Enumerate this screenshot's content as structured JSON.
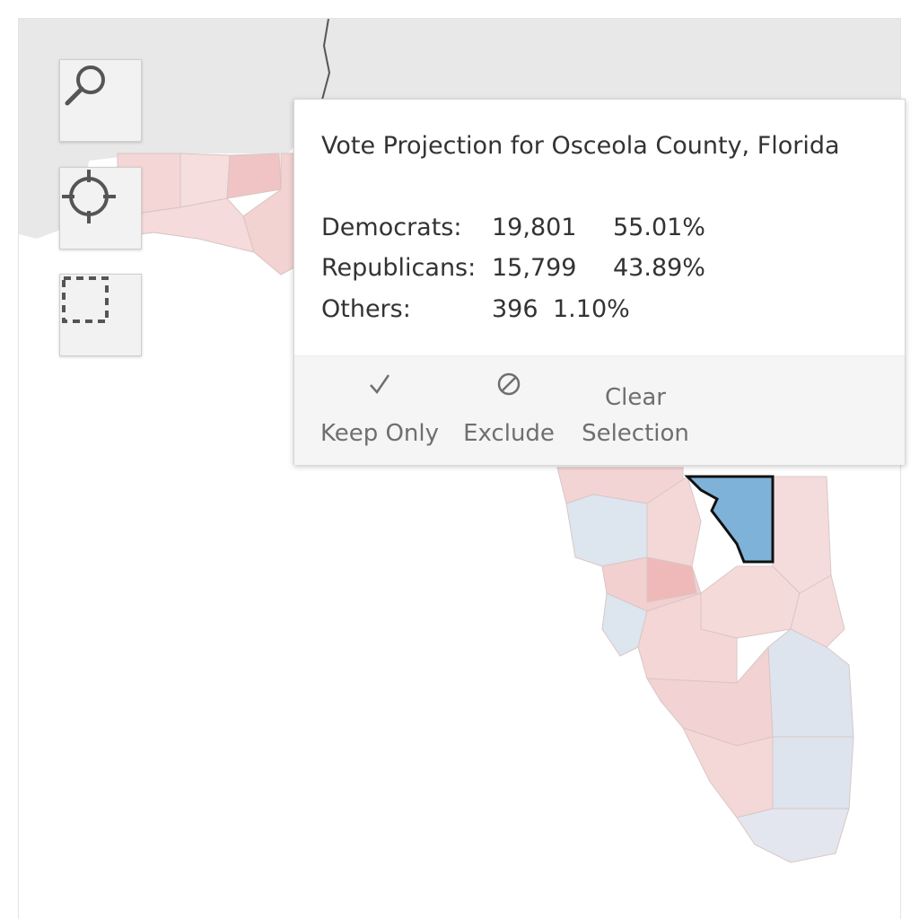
{
  "map": {
    "selected_county": "Osceola County",
    "colors": {
      "republican_light": "#f3d2d2",
      "republican_medium": "#efb6b6",
      "democrat_light": "#d6e0ec",
      "selected": "#7fb2d9",
      "background_land": "#e6e6e6",
      "county_border": "#cfcfcf"
    }
  },
  "toolbar": {
    "search_icon": "search-icon",
    "locate_icon": "crosshair-icon",
    "select_icon": "rectangle-select-icon"
  },
  "tooltip": {
    "title": "Vote Projection for Osceola County, Florida",
    "rows": [
      {
        "label": "Democrats:",
        "count": "19,801",
        "percent": "55.01%"
      },
      {
        "label": "Republicans:",
        "count": "15,799",
        "percent": "43.89%"
      },
      {
        "label": "Others:",
        "count": "396",
        "percent": "1.10%"
      }
    ],
    "actions": {
      "keep_only": "Keep Only",
      "exclude": "Exclude",
      "clear_line1": "Clear",
      "clear_line2": "Selection"
    }
  }
}
